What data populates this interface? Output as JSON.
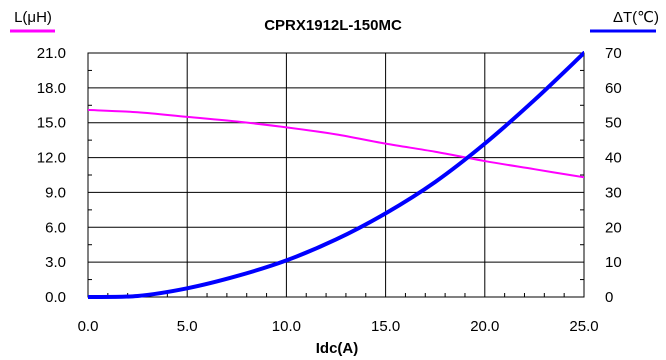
{
  "chart_data": {
    "type": "line",
    "title": "CPRX1912L-150MC",
    "xlabel": "Idc(A)",
    "ylabel_left": "L(μH)",
    "ylabel_right": "ΔT(℃)",
    "xlim": [
      0,
      25
    ],
    "ylim_left": [
      0,
      21
    ],
    "ylim_right": [
      0,
      70
    ],
    "x_ticks": [
      "0.0",
      "5.0",
      "10.0",
      "15.0",
      "20.0",
      "25.0"
    ],
    "y_left_ticks": [
      "0.0",
      "3.0",
      "6.0",
      "9.0",
      "12.0",
      "15.0",
      "18.0",
      "21.0"
    ],
    "y_right_ticks": [
      "0",
      "10",
      "20",
      "30",
      "40",
      "50",
      "60",
      "70"
    ],
    "grid": true,
    "series": [
      {
        "name": "L(μH)",
        "axis": "left",
        "color": "#ff00ff",
        "x": [
          0,
          2.5,
          5,
          7.5,
          10,
          12.5,
          15,
          17.5,
          20,
          22.5,
          25
        ],
        "y": [
          16.1,
          15.9,
          15.5,
          15.1,
          14.6,
          14.0,
          13.2,
          12.5,
          11.7,
          11.0,
          10.3
        ]
      },
      {
        "name": "ΔT(℃)",
        "axis": "right",
        "color": "#0000ff",
        "x": [
          0,
          2.5,
          5,
          7.5,
          10,
          12.5,
          15,
          17.5,
          20,
          22.5,
          25
        ],
        "y": [
          0,
          0.3,
          2.5,
          6.0,
          10.5,
          16.5,
          24.0,
          33.0,
          44.0,
          56.5,
          70.0
        ]
      }
    ]
  }
}
